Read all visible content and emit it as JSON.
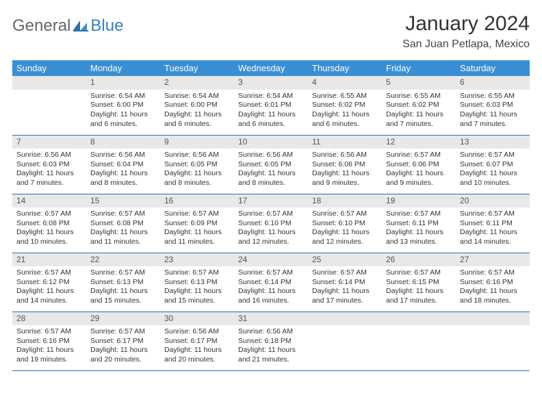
{
  "brand": {
    "part1": "General",
    "part2": "Blue"
  },
  "title": "January 2024",
  "location": "San Juan Petlapa, Mexico",
  "colors": {
    "header_bg": "#3a8fd4",
    "row_border": "#2f6ea8",
    "daynum_bg": "#e8e8e8",
    "text": "#333333"
  },
  "weekdays": [
    "Sunday",
    "Monday",
    "Tuesday",
    "Wednesday",
    "Thursday",
    "Friday",
    "Saturday"
  ],
  "weeks": [
    [
      null,
      {
        "n": "1",
        "sr": "6:54 AM",
        "ss": "6:00 PM",
        "dl": "11 hours and 6 minutes."
      },
      {
        "n": "2",
        "sr": "6:54 AM",
        "ss": "6:00 PM",
        "dl": "11 hours and 6 minutes."
      },
      {
        "n": "3",
        "sr": "6:54 AM",
        "ss": "6:01 PM",
        "dl": "11 hours and 6 minutes."
      },
      {
        "n": "4",
        "sr": "6:55 AM",
        "ss": "6:02 PM",
        "dl": "11 hours and 6 minutes."
      },
      {
        "n": "5",
        "sr": "6:55 AM",
        "ss": "6:02 PM",
        "dl": "11 hours and 7 minutes."
      },
      {
        "n": "6",
        "sr": "6:55 AM",
        "ss": "6:03 PM",
        "dl": "11 hours and 7 minutes."
      }
    ],
    [
      {
        "n": "7",
        "sr": "6:56 AM",
        "ss": "6:03 PM",
        "dl": "11 hours and 7 minutes."
      },
      {
        "n": "8",
        "sr": "6:56 AM",
        "ss": "6:04 PM",
        "dl": "11 hours and 8 minutes."
      },
      {
        "n": "9",
        "sr": "6:56 AM",
        "ss": "6:05 PM",
        "dl": "11 hours and 8 minutes."
      },
      {
        "n": "10",
        "sr": "6:56 AM",
        "ss": "6:05 PM",
        "dl": "11 hours and 8 minutes."
      },
      {
        "n": "11",
        "sr": "6:56 AM",
        "ss": "6:06 PM",
        "dl": "11 hours and 9 minutes."
      },
      {
        "n": "12",
        "sr": "6:57 AM",
        "ss": "6:06 PM",
        "dl": "11 hours and 9 minutes."
      },
      {
        "n": "13",
        "sr": "6:57 AM",
        "ss": "6:07 PM",
        "dl": "11 hours and 10 minutes."
      }
    ],
    [
      {
        "n": "14",
        "sr": "6:57 AM",
        "ss": "6:08 PM",
        "dl": "11 hours and 10 minutes."
      },
      {
        "n": "15",
        "sr": "6:57 AM",
        "ss": "6:08 PM",
        "dl": "11 hours and 11 minutes."
      },
      {
        "n": "16",
        "sr": "6:57 AM",
        "ss": "6:09 PM",
        "dl": "11 hours and 11 minutes."
      },
      {
        "n": "17",
        "sr": "6:57 AM",
        "ss": "6:10 PM",
        "dl": "11 hours and 12 minutes."
      },
      {
        "n": "18",
        "sr": "6:57 AM",
        "ss": "6:10 PM",
        "dl": "11 hours and 12 minutes."
      },
      {
        "n": "19",
        "sr": "6:57 AM",
        "ss": "6:11 PM",
        "dl": "11 hours and 13 minutes."
      },
      {
        "n": "20",
        "sr": "6:57 AM",
        "ss": "6:11 PM",
        "dl": "11 hours and 14 minutes."
      }
    ],
    [
      {
        "n": "21",
        "sr": "6:57 AM",
        "ss": "6:12 PM",
        "dl": "11 hours and 14 minutes."
      },
      {
        "n": "22",
        "sr": "6:57 AM",
        "ss": "6:13 PM",
        "dl": "11 hours and 15 minutes."
      },
      {
        "n": "23",
        "sr": "6:57 AM",
        "ss": "6:13 PM",
        "dl": "11 hours and 15 minutes."
      },
      {
        "n": "24",
        "sr": "6:57 AM",
        "ss": "6:14 PM",
        "dl": "11 hours and 16 minutes."
      },
      {
        "n": "25",
        "sr": "6:57 AM",
        "ss": "6:14 PM",
        "dl": "11 hours and 17 minutes."
      },
      {
        "n": "26",
        "sr": "6:57 AM",
        "ss": "6:15 PM",
        "dl": "11 hours and 17 minutes."
      },
      {
        "n": "27",
        "sr": "6:57 AM",
        "ss": "6:16 PM",
        "dl": "11 hours and 18 minutes."
      }
    ],
    [
      {
        "n": "28",
        "sr": "6:57 AM",
        "ss": "6:16 PM",
        "dl": "11 hours and 19 minutes."
      },
      {
        "n": "29",
        "sr": "6:57 AM",
        "ss": "6:17 PM",
        "dl": "11 hours and 20 minutes."
      },
      {
        "n": "30",
        "sr": "6:56 AM",
        "ss": "6:17 PM",
        "dl": "11 hours and 20 minutes."
      },
      {
        "n": "31",
        "sr": "6:56 AM",
        "ss": "6:18 PM",
        "dl": "11 hours and 21 minutes."
      },
      null,
      null,
      null
    ]
  ],
  "labels": {
    "sunrise": "Sunrise:",
    "sunset": "Sunset:",
    "daylight": "Daylight:"
  }
}
